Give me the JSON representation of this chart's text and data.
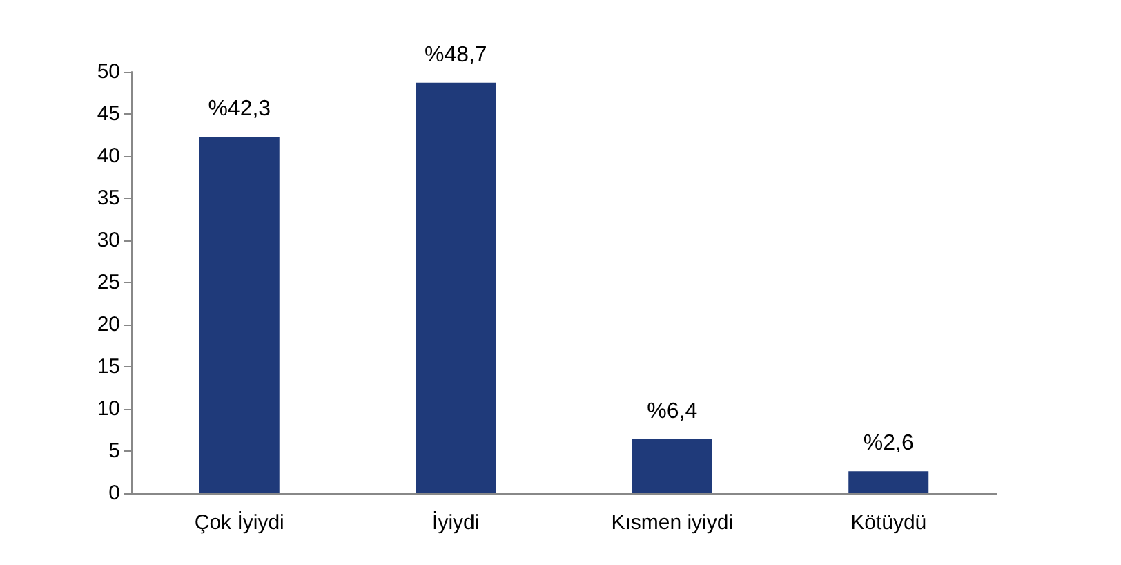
{
  "chart_data": {
    "type": "bar",
    "categories": [
      "Çok İyiydi",
      "İyiydi",
      "Kısmen iyiydi",
      "Kötüydü"
    ],
    "values": [
      42.3,
      48.7,
      6.4,
      2.6
    ],
    "color": "#1f3a7a",
    "value_labels": [
      "%42,3",
      "%48,7",
      "%6,4",
      "%2,6"
    ],
    "ylim": [
      0,
      50
    ],
    "yticks": [
      0,
      5,
      10,
      15,
      20,
      25,
      30,
      35,
      40,
      45,
      50
    ],
    "grid": false
  }
}
